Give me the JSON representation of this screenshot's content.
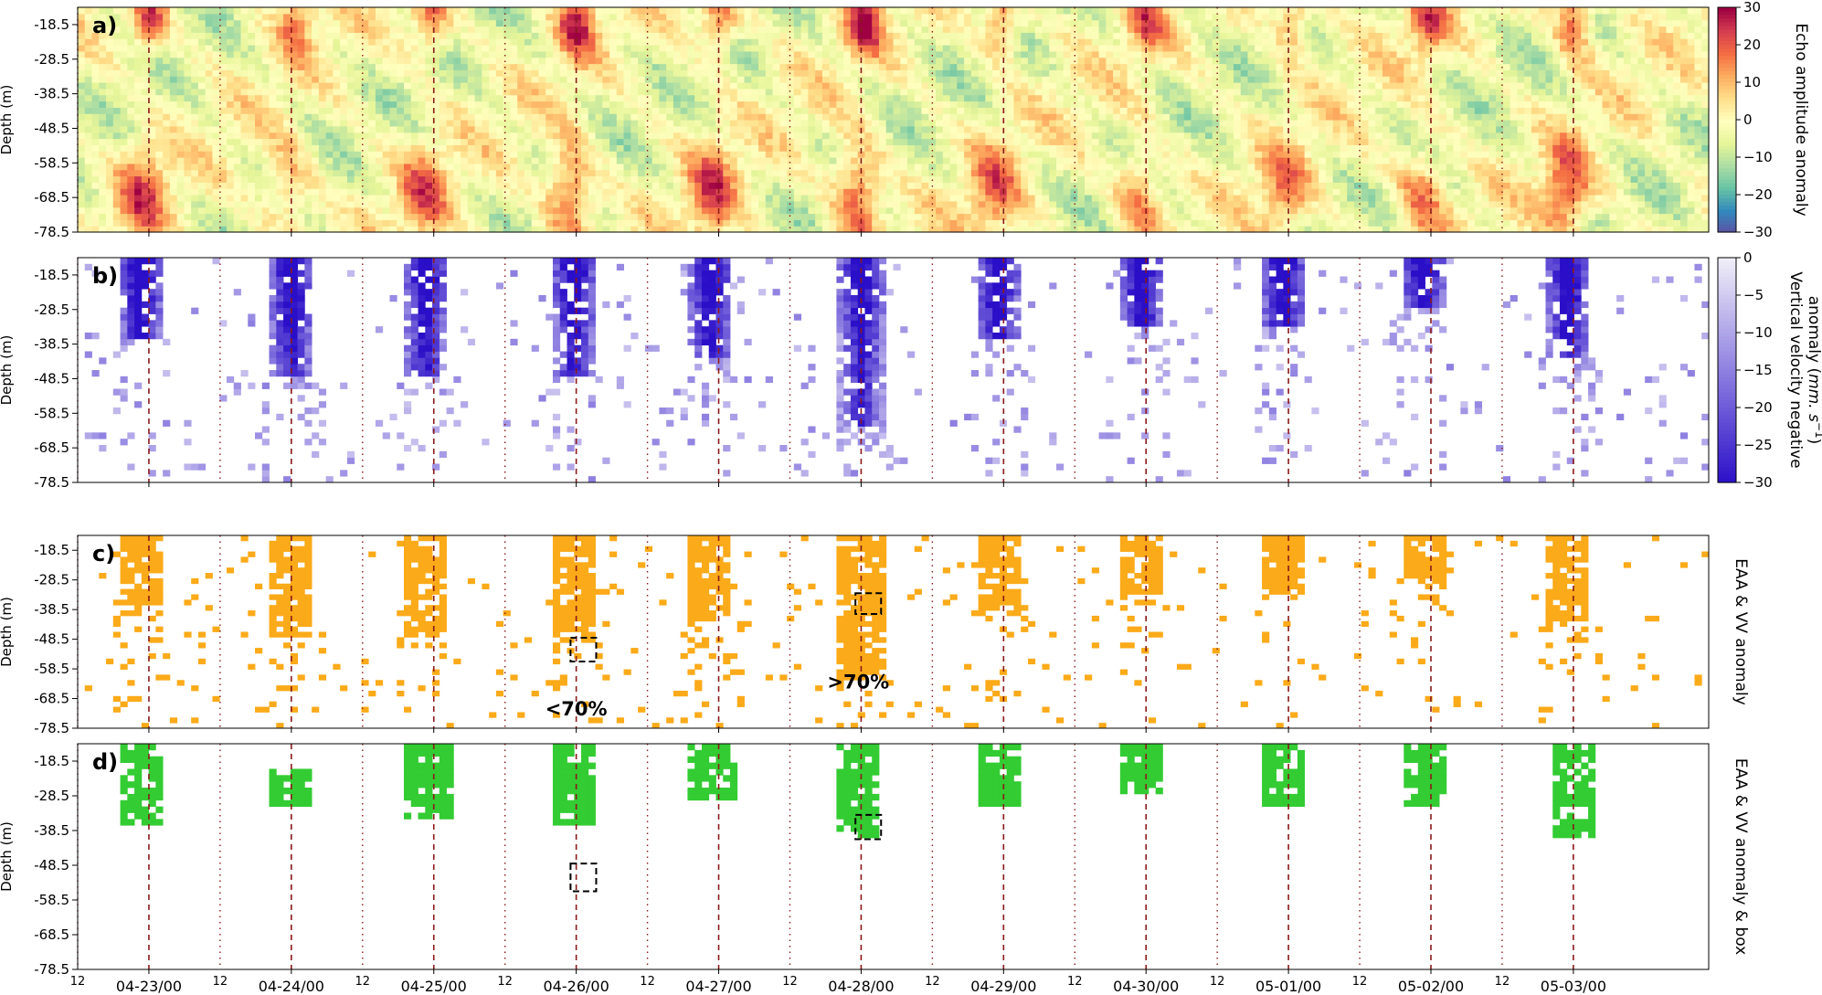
{
  "chart_data": [
    {
      "type": "heatmap",
      "panel_label": "a)",
      "ylabel": "Depth (m)",
      "y_ticks": [
        -18.5,
        -28.5,
        -38.5,
        -48.5,
        -58.5,
        -68.5,
        -78.5
      ],
      "ylim": [
        -78.5,
        -13.5
      ],
      "colorbar": {
        "label": "Echo amplitude anomaly",
        "range": [
          -30,
          30
        ],
        "ticks": [
          -30,
          -20,
          -10,
          0,
          10,
          20,
          30
        ],
        "tick_labels": [
          "−30",
          "−20",
          "−10",
          "0",
          "10",
          "20",
          "30"
        ],
        "colormap": "Spectral_r"
      },
      "day_peaks": [
        {
          "t": 0.48,
          "amp": 22
        },
        {
          "t": 1.5,
          "amp": 16
        },
        {
          "t": 2.45,
          "amp": 20
        },
        {
          "t": 3.48,
          "amp": 26
        },
        {
          "t": 4.48,
          "amp": 22
        },
        {
          "t": 5.5,
          "amp": 27
        },
        {
          "t": 6.46,
          "amp": 20
        },
        {
          "t": 7.48,
          "amp": 18
        },
        {
          "t": 8.5,
          "amp": 18
        },
        {
          "t": 9.45,
          "amp": 20
        },
        {
          "t": 10.48,
          "amp": 24
        }
      ]
    },
    {
      "type": "heatmap",
      "panel_label": "b)",
      "ylabel": "Depth (m)",
      "y_ticks": [
        -18.5,
        -28.5,
        -38.5,
        -48.5,
        -58.5,
        -68.5,
        -78.5
      ],
      "ylim": [
        -78.5,
        -13.5
      ],
      "colorbar": {
        "label_line1": "Vertical velocity negative",
        "label_line2_prefix": "anomaly (",
        "label_line2_units": "mm. s",
        "label_line2_exp": "−1",
        "label_line2_suffix": ")",
        "range": [
          -30,
          0
        ],
        "ticks": [
          0,
          -5,
          -10,
          -15,
          -20,
          -25,
          -30
        ],
        "tick_labels": [
          "0",
          "−5",
          "−10",
          "−15",
          "−20",
          "−25",
          "−30"
        ]
      },
      "day_blobs": [
        {
          "t": 0.42,
          "depth": [
            -13.5,
            -38.5
          ]
        },
        {
          "t": 1.48,
          "depth": [
            -13.5,
            -48.5
          ]
        },
        {
          "t": 2.42,
          "depth": [
            -13.5,
            -48.5
          ]
        },
        {
          "t": 3.46,
          "depth": [
            -13.5,
            -48.5
          ]
        },
        {
          "t": 4.42,
          "depth": [
            -13.5,
            -43.5
          ]
        },
        {
          "t": 5.48,
          "depth": [
            -13.5,
            -63.5
          ]
        },
        {
          "t": 6.44,
          "depth": [
            -13.5,
            -38.5
          ]
        },
        {
          "t": 7.44,
          "depth": [
            -13.5,
            -33.5
          ]
        },
        {
          "t": 8.44,
          "depth": [
            -13.5,
            -33.5
          ]
        },
        {
          "t": 9.42,
          "depth": [
            -13.5,
            -28.5
          ]
        },
        {
          "t": 10.44,
          "depth": [
            -13.5,
            -43.5
          ]
        }
      ]
    },
    {
      "type": "heatmap",
      "panel_label": "c)",
      "ylabel": "Depth (m)",
      "right_label": "EAA & VV anomaly",
      "y_ticks": [
        -18.5,
        -28.5,
        -38.5,
        -48.5,
        -58.5,
        -68.5,
        -78.5
      ],
      "ylim": [
        -78.5,
        -13.5
      ],
      "color": "#fbaa19",
      "annotations": [
        {
          "text": "<70%",
          "x": 3.5,
          "y": -72
        },
        {
          "text": ">70%",
          "x": 5.48,
          "y": -63
        }
      ],
      "boxes": [
        {
          "x": [
            3.46,
            3.64
          ],
          "y": [
            -56,
            -48
          ]
        },
        {
          "x": [
            5.46,
            5.64
          ],
          "y": [
            -40,
            -33
          ]
        }
      ]
    },
    {
      "type": "heatmap",
      "panel_label": "d)",
      "ylabel": "Depth (m)",
      "right_label": "EAA & VV anomaly & box",
      "y_ticks": [
        -18.5,
        -28.5,
        -38.5,
        -48.5,
        -58.5,
        -68.5,
        -78.5
      ],
      "ylim": [
        -78.5,
        -13.5
      ],
      "color": "#33cc33",
      "boxes": [
        {
          "x": [
            3.46,
            3.64
          ],
          "y": [
            -56,
            -48
          ]
        },
        {
          "x": [
            5.46,
            5.64
          ],
          "y": [
            -41,
            -34
          ]
        }
      ],
      "day_blocks": [
        {
          "t": 0.42,
          "depth": [
            -13.5,
            -38.5
          ]
        },
        {
          "t": 1.48,
          "depth": [
            -21,
            -33
          ]
        },
        {
          "t": 2.44,
          "depth": [
            -13.5,
            -36
          ]
        },
        {
          "t": 3.46,
          "depth": [
            -13.5,
            -38
          ]
        },
        {
          "t": 4.44,
          "depth": [
            -13.5,
            -30
          ]
        },
        {
          "t": 5.46,
          "depth": [
            -13.5,
            -42
          ]
        },
        {
          "t": 6.44,
          "depth": [
            -13.5,
            -32
          ]
        },
        {
          "t": 7.44,
          "depth": [
            -13.5,
            -29
          ]
        },
        {
          "t": 8.44,
          "depth": [
            -13.5,
            -32
          ]
        },
        {
          "t": 9.44,
          "depth": [
            -13.5,
            -32
          ]
        },
        {
          "t": 10.48,
          "depth": [
            -13.5,
            -41
          ]
        }
      ]
    }
  ],
  "x_axis": {
    "major_labels": [
      "04-23/00",
      "04-24/00",
      "04-25/00",
      "04-26/00",
      "04-27/00",
      "04-28/00",
      "04-29/00",
      "04-30/00",
      "05-01/00",
      "05-02/00",
      "05-03/00"
    ],
    "minor_label": "12",
    "minor_count": 11,
    "xlim_days": [
      0,
      11.45
    ]
  },
  "colors": {
    "vline": "#8b1a1a",
    "vv_max": "#2a0fc8",
    "vv_min": "#f0eef8"
  }
}
